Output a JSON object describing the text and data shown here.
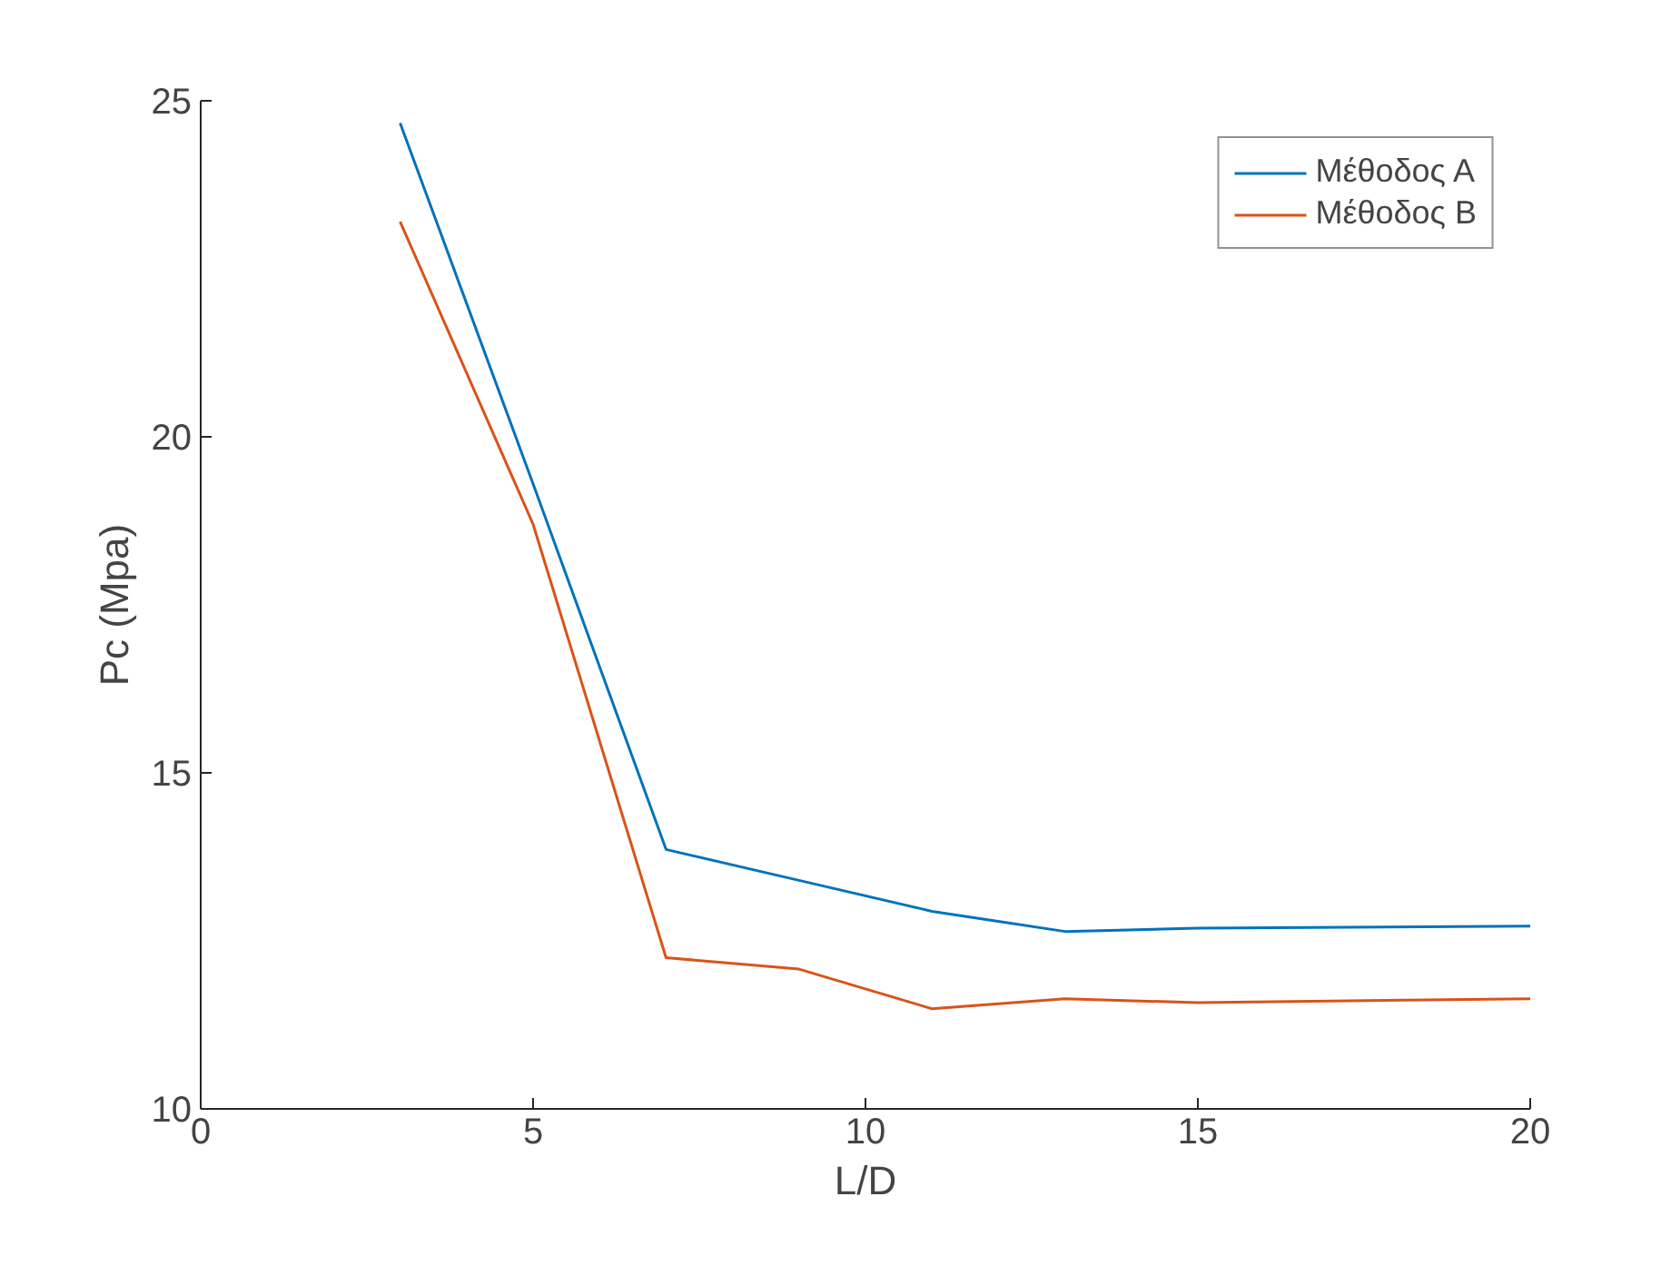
{
  "chart_data": {
    "type": "line",
    "xlabel": "L/D",
    "ylabel": "Pc (Mpa)",
    "x": [
      3,
      5,
      7,
      9,
      11,
      13,
      15,
      20
    ],
    "series": [
      {
        "name": "Μέθοδος Α",
        "color": "#0072bd",
        "values": [
          24.67,
          19.3,
          13.86,
          13.4,
          12.94,
          12.64,
          12.69,
          12.72
        ]
      },
      {
        "name": "Μέθοδος Β",
        "color": "#d95319",
        "values": [
          23.2,
          18.7,
          12.25,
          12.08,
          11.49,
          11.64,
          11.58,
          11.64
        ]
      }
    ],
    "xlim": [
      0,
      20
    ],
    "ylim": [
      10,
      25
    ],
    "xticks": [
      0,
      5,
      10,
      15,
      20
    ],
    "yticks": [
      10,
      15,
      20,
      25
    ],
    "grid": false,
    "legend": "top right",
    "line_style": "solid",
    "marker": "none"
  }
}
